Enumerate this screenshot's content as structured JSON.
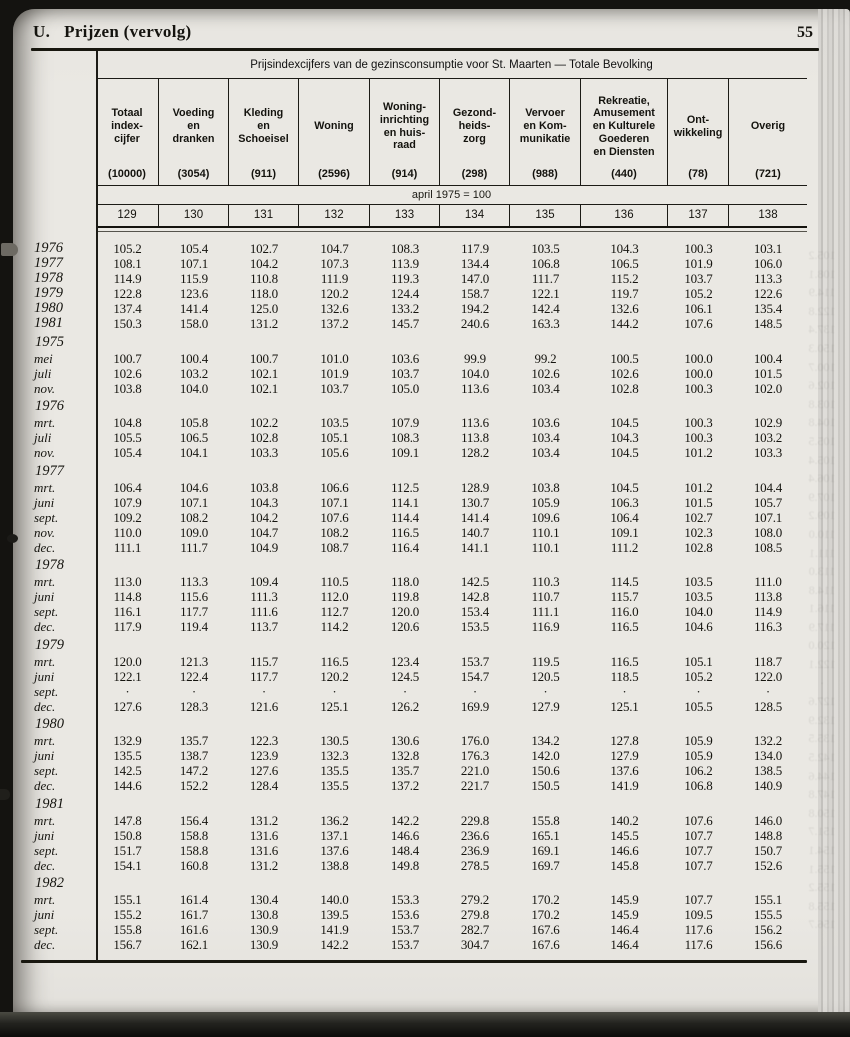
{
  "page": {
    "section_label": "U.",
    "section_title": "Prijzen (vervolg)",
    "page_number": "55"
  },
  "table": {
    "title": "Prijsindexcijfers van de gezinsconsumptie voor St. Maarten — Totale Bevolking",
    "base_note": "april 1975 = 100",
    "columns": [
      {
        "label": "Totaal\nindex-\ncijfer",
        "weight": "(10000)",
        "code": "129"
      },
      {
        "label": "Voeding\nen\ndranken",
        "weight": "(3054)",
        "code": "130"
      },
      {
        "label": "Kleding\nen\nSchoeisel",
        "weight": "(911)",
        "code": "131"
      },
      {
        "label": "Woning",
        "weight": "(2596)",
        "code": "132"
      },
      {
        "label": "Woning-\ninrichting\nen huis-\nraad",
        "weight": "(914)",
        "code": "133"
      },
      {
        "label": "Gezond-\nheids-\nzorg",
        "weight": "(298)",
        "code": "134"
      },
      {
        "label": "Vervoer\nen Kom-\nmunikatie",
        "weight": "(988)",
        "code": "135"
      },
      {
        "label": "Rekreatie,\nAmusement\nen Kulturele\nGoederen\nen Diensten",
        "weight": "(440)",
        "code": "136"
      },
      {
        "label": "Ont-\nwikkeling",
        "weight": "(78)",
        "code": "137"
      },
      {
        "label": "Overig",
        "weight": "(721)",
        "code": "138"
      }
    ],
    "groups": [
      {
        "heading": "",
        "rows": [
          {
            "label": "1976",
            "values": [
              "105.2",
              "105.4",
              "102.7",
              "104.7",
              "108.3",
              "117.9",
              "103.5",
              "104.3",
              "100.3",
              "103.1"
            ]
          },
          {
            "label": "1977",
            "values": [
              "108.1",
              "107.1",
              "104.2",
              "107.3",
              "113.9",
              "134.4",
              "106.8",
              "106.5",
              "101.9",
              "106.0"
            ]
          },
          {
            "label": "1978",
            "values": [
              "114.9",
              "115.9",
              "110.8",
              "111.9",
              "119.3",
              "147.0",
              "111.7",
              "115.2",
              "103.7",
              "113.3"
            ]
          },
          {
            "label": "1979",
            "values": [
              "122.8",
              "123.6",
              "118.0",
              "120.2",
              "124.4",
              "158.7",
              "122.1",
              "119.7",
              "105.2",
              "122.6"
            ]
          },
          {
            "label": "1980",
            "values": [
              "137.4",
              "141.4",
              "125.0",
              "132.6",
              "133.2",
              "194.2",
              "142.4",
              "132.6",
              "106.1",
              "135.4"
            ]
          },
          {
            "label": "1981",
            "values": [
              "150.3",
              "158.0",
              "131.2",
              "137.2",
              "145.7",
              "240.6",
              "163.3",
              "144.2",
              "107.6",
              "148.5"
            ]
          }
        ]
      },
      {
        "heading": "1975",
        "rows": [
          {
            "label": "mei",
            "values": [
              "100.7",
              "100.4",
              "100.7",
              "101.0",
              "103.6",
              "99.9",
              "99.2",
              "100.5",
              "100.0",
              "100.4"
            ]
          },
          {
            "label": "juli",
            "values": [
              "102.6",
              "103.2",
              "102.1",
              "101.9",
              "103.7",
              "104.0",
              "102.6",
              "102.6",
              "100.0",
              "101.5"
            ]
          },
          {
            "label": "nov.",
            "values": [
              "103.8",
              "104.0",
              "102.1",
              "103.7",
              "105.0",
              "113.6",
              "103.4",
              "102.8",
              "100.3",
              "102.0"
            ]
          }
        ]
      },
      {
        "heading": "1976",
        "rows": [
          {
            "label": "mrt.",
            "values": [
              "104.8",
              "105.8",
              "102.2",
              "103.5",
              "107.9",
              "113.6",
              "103.6",
              "104.5",
              "100.3",
              "102.9"
            ]
          },
          {
            "label": "juli",
            "values": [
              "105.5",
              "106.5",
              "102.8",
              "105.1",
              "108.3",
              "113.8",
              "103.4",
              "104.3",
              "100.3",
              "103.2"
            ]
          },
          {
            "label": "nov.",
            "values": [
              "105.4",
              "104.1",
              "103.3",
              "105.6",
              "109.1",
              "128.2",
              "103.4",
              "104.5",
              "101.2",
              "103.3"
            ]
          }
        ]
      },
      {
        "heading": "1977",
        "rows": [
          {
            "label": "mrt.",
            "values": [
              "106.4",
              "104.6",
              "103.8",
              "106.6",
              "112.5",
              "128.9",
              "103.8",
              "104.5",
              "101.2",
              "104.4"
            ]
          },
          {
            "label": "juni",
            "values": [
              "107.9",
              "107.1",
              "104.3",
              "107.1",
              "114.1",
              "130.7",
              "105.9",
              "106.3",
              "101.5",
              "105.7"
            ]
          },
          {
            "label": "sept.",
            "values": [
              "109.2",
              "108.2",
              "104.2",
              "107.6",
              "114.4",
              "141.4",
              "109.6",
              "106.4",
              "102.7",
              "107.1"
            ]
          },
          {
            "label": "nov.",
            "values": [
              "110.0",
              "109.0",
              "104.7",
              "108.2",
              "116.5",
              "140.7",
              "110.1",
              "109.1",
              "102.3",
              "108.0"
            ]
          },
          {
            "label": "dec.",
            "values": [
              "111.1",
              "111.7",
              "104.9",
              "108.7",
              "116.4",
              "141.1",
              "110.1",
              "111.2",
              "102.8",
              "108.5"
            ]
          }
        ]
      },
      {
        "heading": "1978",
        "rows": [
          {
            "label": "mrt.",
            "values": [
              "113.0",
              "113.3",
              "109.4",
              "110.5",
              "118.0",
              "142.5",
              "110.3",
              "114.5",
              "103.5",
              "111.0"
            ]
          },
          {
            "label": "juni",
            "values": [
              "114.8",
              "115.6",
              "111.3",
              "112.0",
              "119.8",
              "142.8",
              "110.7",
              "115.7",
              "103.5",
              "113.8"
            ]
          },
          {
            "label": "sept.",
            "values": [
              "116.1",
              "117.7",
              "111.6",
              "112.7",
              "120.0",
              "153.4",
              "111.1",
              "116.0",
              "104.0",
              "114.9"
            ]
          },
          {
            "label": "dec.",
            "values": [
              "117.9",
              "119.4",
              "113.7",
              "114.2",
              "120.6",
              "153.5",
              "116.9",
              "116.5",
              "104.6",
              "116.3"
            ]
          }
        ]
      },
      {
        "heading": "1979",
        "rows": [
          {
            "label": "mrt.",
            "values": [
              "120.0",
              "121.3",
              "115.7",
              "116.5",
              "123.4",
              "153.7",
              "119.5",
              "116.5",
              "105.1",
              "118.7"
            ]
          },
          {
            "label": "juni",
            "values": [
              "122.1",
              "122.4",
              "117.7",
              "120.2",
              "124.5",
              "154.7",
              "120.5",
              "118.5",
              "105.2",
              "122.0"
            ]
          },
          {
            "label": "sept.",
            "values": [
              "·",
              "·",
              "·",
              "·",
              "·",
              "·",
              "·",
              "·",
              "·",
              "·"
            ]
          },
          {
            "label": "dec.",
            "values": [
              "127.6",
              "128.3",
              "121.6",
              "125.1",
              "126.2",
              "169.9",
              "127.9",
              "125.1",
              "105.5",
              "128.5"
            ]
          }
        ]
      },
      {
        "heading": "1980",
        "rows": [
          {
            "label": "mrt.",
            "values": [
              "132.9",
              "135.7",
              "122.3",
              "130.5",
              "130.6",
              "176.0",
              "134.2",
              "127.8",
              "105.9",
              "132.2"
            ]
          },
          {
            "label": "juni",
            "values": [
              "135.5",
              "138.7",
              "123.9",
              "132.3",
              "132.8",
              "176.3",
              "142.0",
              "127.9",
              "105.9",
              "134.0"
            ]
          },
          {
            "label": "sept.",
            "values": [
              "142.5",
              "147.2",
              "127.6",
              "135.5",
              "135.7",
              "221.0",
              "150.6",
              "137.6",
              "106.2",
              "138.5"
            ]
          },
          {
            "label": "dec.",
            "values": [
              "144.6",
              "152.2",
              "128.4",
              "135.5",
              "137.2",
              "221.7",
              "150.5",
              "141.9",
              "106.8",
              "140.9"
            ]
          }
        ]
      },
      {
        "heading": "1981",
        "rows": [
          {
            "label": "mrt.",
            "values": [
              "147.8",
              "156.4",
              "131.2",
              "136.2",
              "142.2",
              "229.8",
              "155.8",
              "140.2",
              "107.6",
              "146.0"
            ]
          },
          {
            "label": "juni",
            "values": [
              "150.8",
              "158.8",
              "131.6",
              "137.1",
              "146.6",
              "236.6",
              "165.1",
              "145.5",
              "107.7",
              "148.8"
            ]
          },
          {
            "label": "sept.",
            "values": [
              "151.7",
              "158.8",
              "131.6",
              "137.6",
              "148.4",
              "236.9",
              "169.1",
              "146.6",
              "107.7",
              "150.7"
            ]
          },
          {
            "label": "dec.",
            "values": [
              "154.1",
              "160.8",
              "131.2",
              "138.8",
              "149.8",
              "278.5",
              "169.7",
              "145.8",
              "107.7",
              "152.6"
            ]
          }
        ]
      },
      {
        "heading": "1982",
        "rows": [
          {
            "label": "mrt.",
            "values": [
              "155.1",
              "161.4",
              "130.4",
              "140.0",
              "153.3",
              "279.2",
              "170.2",
              "145.9",
              "107.7",
              "155.1"
            ]
          },
          {
            "label": "juni",
            "values": [
              "155.2",
              "161.7",
              "130.8",
              "139.5",
              "153.6",
              "279.8",
              "170.2",
              "145.9",
              "109.5",
              "155.5"
            ]
          },
          {
            "label": "sept.",
            "values": [
              "155.8",
              "161.6",
              "130.9",
              "141.9",
              "153.7",
              "282.7",
              "167.6",
              "146.4",
              "117.6",
              "156.2"
            ]
          },
          {
            "label": "dec.",
            "values": [
              "156.7",
              "162.1",
              "130.9",
              "142.2",
              "153.7",
              "304.7",
              "167.6",
              "146.4",
              "117.6",
              "156.6"
            ]
          }
        ]
      }
    ]
  },
  "colors": {
    "paper": "#eae8e3",
    "ink": "#15140f",
    "rule": "#1c1b16"
  }
}
